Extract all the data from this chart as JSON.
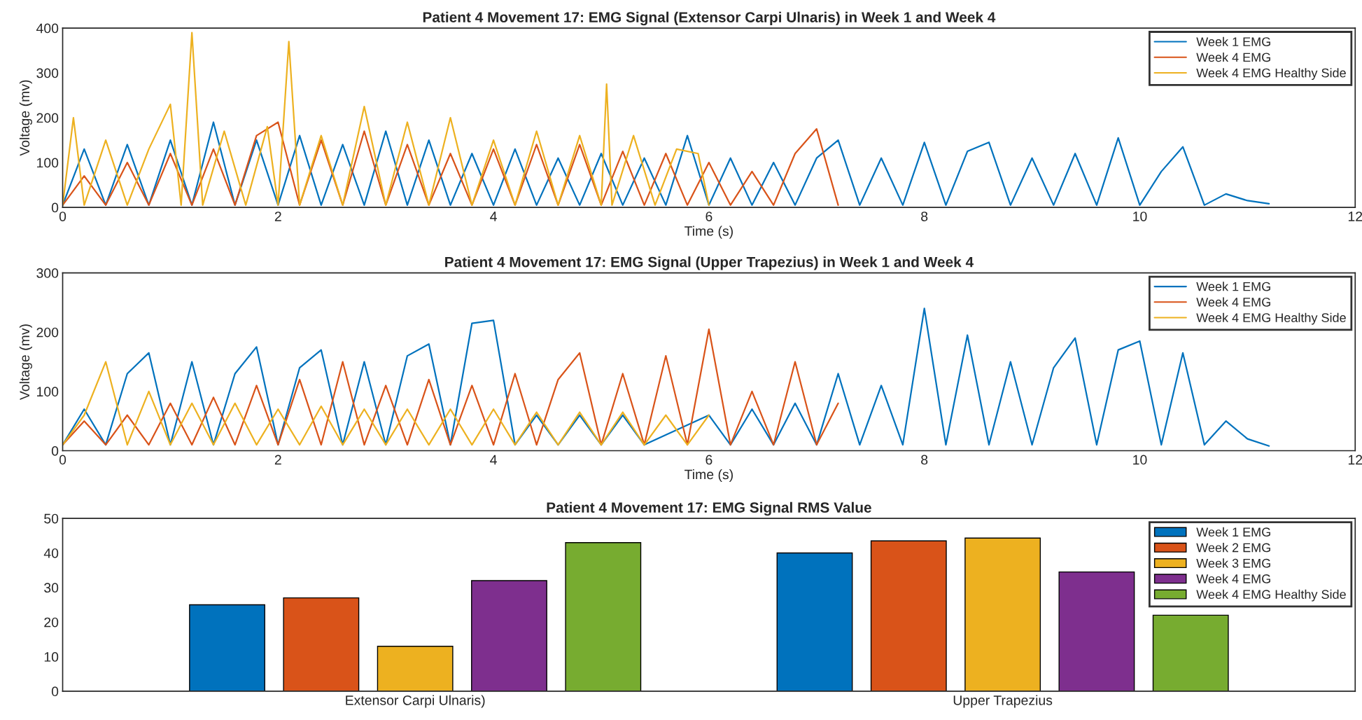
{
  "chart_data": [
    {
      "type": "line",
      "title": "Patient 4 Movement 17: EMG Signal (Extensor Carpi Ulnaris) in Week 1 and Week 4",
      "xlabel": "Time (s)",
      "ylabel": "Voltage (mv)",
      "xlim": [
        0,
        12
      ],
      "xticks": [
        0,
        2,
        4,
        6,
        8,
        10,
        12
      ],
      "ylim": [
        0,
        400
      ],
      "yticks": [
        0,
        100,
        200,
        300,
        400
      ],
      "grid": false,
      "legend": "top right",
      "marker": "none",
      "line_style": "solid",
      "series": [
        {
          "name": "Week 1 EMG",
          "color": "#0072bd",
          "x": [
            0,
            0.2,
            0.4,
            0.6,
            0.8,
            1.0,
            1.2,
            1.4,
            1.6,
            1.8,
            2.0,
            2.2,
            2.4,
            2.6,
            2.8,
            3.0,
            3.2,
            3.4,
            3.6,
            3.8,
            4.0,
            4.2,
            4.4,
            4.6,
            4.8,
            5.0,
            5.2,
            5.4,
            5.6,
            5.8,
            6.0,
            6.2,
            6.4,
            6.6,
            6.8,
            7.0,
            7.2,
            7.4,
            7.6,
            7.8,
            8.0,
            8.2,
            8.4,
            8.6,
            8.8,
            9.0,
            9.2,
            9.4,
            9.6,
            9.8,
            10.0,
            10.2,
            10.4,
            10.6,
            10.8,
            11.0,
            11.2
          ],
          "values": [
            5,
            130,
            5,
            140,
            5,
            150,
            5,
            190,
            5,
            150,
            5,
            160,
            5,
            140,
            5,
            170,
            5,
            150,
            5,
            120,
            5,
            130,
            5,
            110,
            5,
            120,
            5,
            110,
            5,
            160,
            5,
            110,
            5,
            100,
            5,
            110,
            150,
            5,
            110,
            5,
            145,
            5,
            125,
            145,
            5,
            110,
            5,
            120,
            5,
            155,
            5,
            80,
            135,
            5,
            30,
            15,
            8
          ]
        },
        {
          "name": "Week 4 EMG",
          "color": "#d95319",
          "x": [
            0,
            0.2,
            0.4,
            0.6,
            0.8,
            1.0,
            1.2,
            1.4,
            1.6,
            1.8,
            2.0,
            2.2,
            2.4,
            2.6,
            2.8,
            3.0,
            3.2,
            3.4,
            3.6,
            3.8,
            4.0,
            4.2,
            4.4,
            4.6,
            4.8,
            5.0,
            5.2,
            5.4,
            5.6,
            5.8,
            6.0,
            6.2,
            6.4,
            6.6,
            6.8,
            7.0,
            7.2
          ],
          "values": [
            5,
            70,
            5,
            100,
            5,
            120,
            5,
            130,
            5,
            160,
            190,
            5,
            150,
            5,
            170,
            5,
            140,
            5,
            120,
            5,
            130,
            5,
            140,
            5,
            140,
            5,
            125,
            5,
            120,
            5,
            100,
            5,
            80,
            5,
            120,
            175,
            5
          ]
        },
        {
          "name": "Week 4 EMG Healthy Side",
          "color": "#edb120",
          "x": [
            0,
            0.1,
            0.2,
            0.4,
            0.6,
            0.8,
            1.0,
            1.1,
            1.2,
            1.3,
            1.5,
            1.7,
            1.9,
            2.0,
            2.1,
            2.2,
            2.4,
            2.6,
            2.8,
            3.0,
            3.2,
            3.4,
            3.6,
            3.8,
            4.0,
            4.2,
            4.4,
            4.6,
            4.8,
            5.0,
            5.05,
            5.1,
            5.3,
            5.5,
            5.7,
            5.9,
            6.0
          ],
          "values": [
            5,
            200,
            5,
            150,
            5,
            130,
            230,
            5,
            390,
            5,
            170,
            5,
            180,
            5,
            370,
            5,
            160,
            5,
            225,
            5,
            190,
            5,
            200,
            5,
            150,
            5,
            170,
            5,
            160,
            5,
            275,
            5,
            160,
            5,
            130,
            120,
            5
          ]
        }
      ]
    },
    {
      "type": "line",
      "title": "Patient 4 Movement 17: EMG Signal (Upper Trapezius) in Week 1 and Week 4",
      "xlabel": "Time (s)",
      "ylabel": "Voltage (mv)",
      "xlim": [
        0,
        12
      ],
      "xticks": [
        0,
        2,
        4,
        6,
        8,
        10,
        12
      ],
      "ylim": [
        0,
        300
      ],
      "yticks": [
        0,
        100,
        200,
        300
      ],
      "grid": false,
      "legend": "top right",
      "marker": "none",
      "line_style": "solid",
      "series": [
        {
          "name": "Week 1 EMG",
          "color": "#0072bd",
          "x": [
            0,
            0.2,
            0.4,
            0.6,
            0.8,
            1.0,
            1.2,
            1.4,
            1.6,
            1.8,
            2.0,
            2.2,
            2.4,
            2.6,
            2.8,
            3.0,
            3.2,
            3.4,
            3.6,
            3.8,
            4.0,
            4.2,
            4.4,
            4.6,
            4.8,
            5.0,
            5.2,
            5.4,
            5.6,
            5.8,
            6.0,
            6.2,
            6.4,
            6.6,
            6.8,
            7.0,
            7.2,
            7.4,
            7.6,
            7.8,
            8.0,
            8.2,
            8.4,
            8.6,
            8.8,
            9.0,
            9.2,
            9.4,
            9.6,
            9.8,
            10.0,
            10.2,
            10.4,
            10.6,
            10.8,
            11.0,
            11.2
          ],
          "values": [
            10,
            70,
            10,
            130,
            165,
            10,
            150,
            10,
            130,
            175,
            10,
            140,
            170,
            10,
            150,
            10,
            160,
            180,
            10,
            215,
            220,
            10,
            60,
            10,
            60,
            10,
            60,
            10,
            null,
            null,
            60,
            10,
            70,
            10,
            80,
            10,
            130,
            10,
            110,
            10,
            240,
            10,
            195,
            10,
            150,
            10,
            140,
            190,
            10,
            170,
            185,
            10,
            165,
            10,
            50,
            20,
            8
          ]
        },
        {
          "name": "Week 4 EMG",
          "color": "#d95319",
          "x": [
            0,
            0.2,
            0.4,
            0.6,
            0.8,
            1.0,
            1.2,
            1.4,
            1.6,
            1.8,
            2.0,
            2.2,
            2.4,
            2.6,
            2.8,
            3.0,
            3.2,
            3.4,
            3.6,
            3.8,
            4.0,
            4.2,
            4.4,
            4.6,
            4.8,
            5.0,
            5.2,
            5.4,
            5.6,
            5.8,
            6.0,
            6.2,
            6.4,
            6.6,
            6.8,
            7.0,
            7.2
          ],
          "values": [
            10,
            50,
            10,
            60,
            10,
            80,
            10,
            90,
            10,
            110,
            10,
            120,
            10,
            150,
            10,
            110,
            10,
            120,
            10,
            110,
            10,
            130,
            10,
            120,
            165,
            10,
            130,
            10,
            160,
            10,
            205,
            10,
            100,
            10,
            150,
            10,
            80
          ]
        },
        {
          "name": "Week 4 EMG Healthy Side",
          "color": "#edb120",
          "x": [
            0,
            0.2,
            0.4,
            0.6,
            0.8,
            1.0,
            1.2,
            1.4,
            1.6,
            1.8,
            2.0,
            2.2,
            2.4,
            2.6,
            2.8,
            3.0,
            3.2,
            3.4,
            3.6,
            3.8,
            4.0,
            4.2,
            4.4,
            4.6,
            4.8,
            5.0,
            5.2,
            5.4,
            5.6,
            5.8,
            6.0
          ],
          "values": [
            10,
            60,
            150,
            10,
            100,
            10,
            80,
            10,
            80,
            10,
            70,
            10,
            75,
            10,
            70,
            10,
            70,
            10,
            70,
            10,
            70,
            10,
            65,
            10,
            65,
            10,
            65,
            10,
            60,
            10,
            60
          ]
        }
      ]
    },
    {
      "type": "bar",
      "title": "Patient 4 Movement 17: EMG Signal RMS Value",
      "categories": [
        "Extensor Carpi Ulnaris)",
        "Upper Trapezius"
      ],
      "ylim": [
        0,
        50
      ],
      "yticks": [
        0,
        10,
        20,
        30,
        40,
        50
      ],
      "grid": false,
      "legend": "top right",
      "series": [
        {
          "name": "Week 1 EMG",
          "color": "#0072bd",
          "values": [
            25,
            40
          ]
        },
        {
          "name": "Week 2 EMG",
          "color": "#d95319",
          "values": [
            27,
            43.5
          ]
        },
        {
          "name": "Week 3 EMG",
          "color": "#edb120",
          "values": [
            13,
            44.3
          ]
        },
        {
          "name": "Week 4 EMG",
          "color": "#7e2f8e",
          "values": [
            32,
            34.5
          ]
        },
        {
          "name": "Week 4 EMG Healthy Side",
          "color": "#77ac30",
          "values": [
            43,
            22
          ]
        }
      ]
    }
  ]
}
